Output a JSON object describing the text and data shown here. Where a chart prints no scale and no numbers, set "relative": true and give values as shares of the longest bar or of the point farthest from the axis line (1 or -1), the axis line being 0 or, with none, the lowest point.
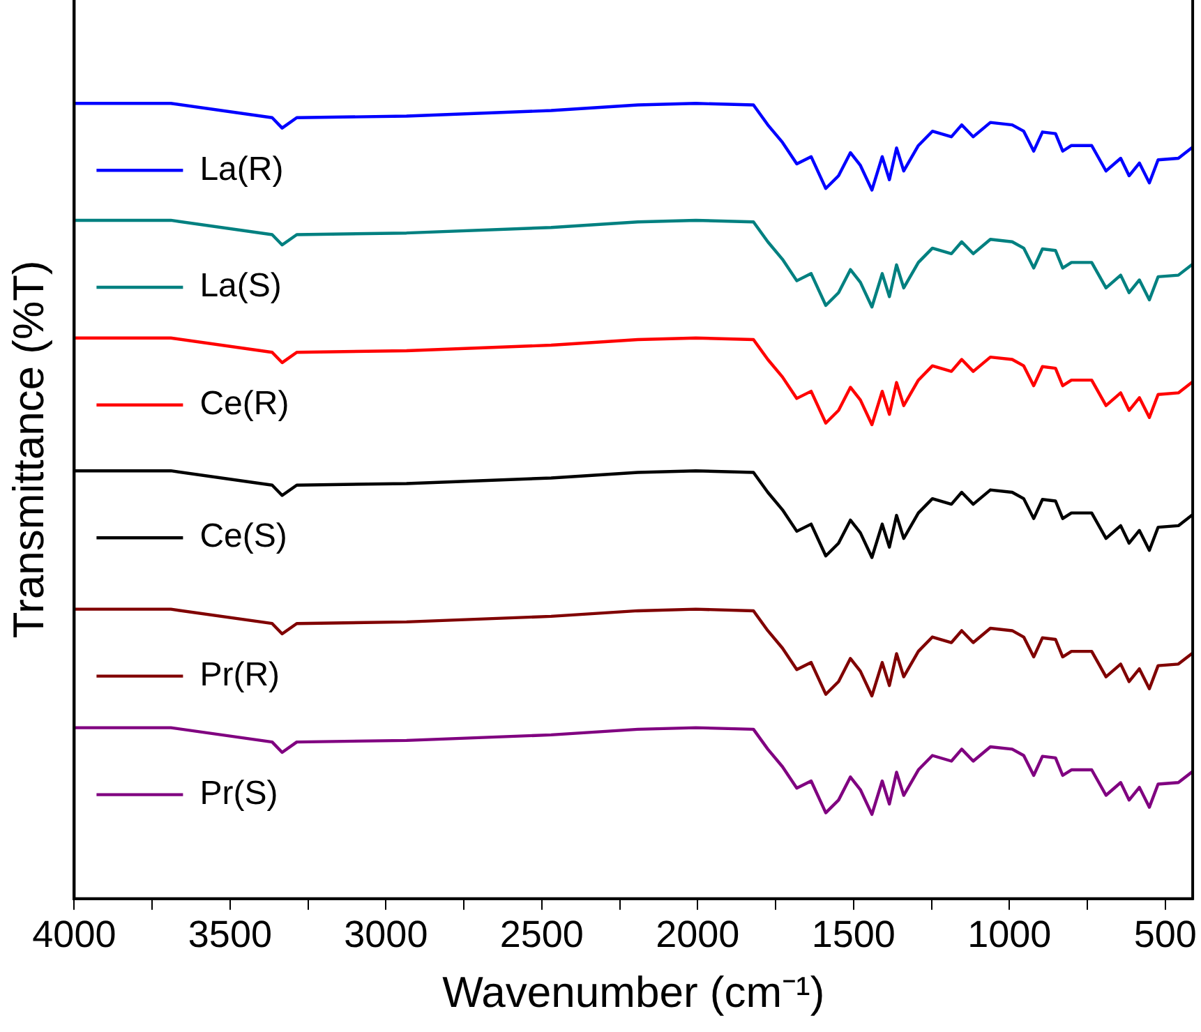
{
  "chart_data": {
    "type": "line",
    "xlabel": "Wavenumber (cm⁻¹)",
    "ylabel": "Transmittance (%T)",
    "relative": true,
    "legend": "left",
    "grid": false,
    "marker": "none",
    "line_style": "solid",
    "xlim": [
      4000,
      412
    ],
    "xticks": [
      4000,
      {
        "value": 3750,
        "label": null
      },
      3500,
      {
        "value": 3250,
        "label": null
      },
      3000,
      {
        "value": 2750,
        "label": null
      },
      2500,
      {
        "value": 2250,
        "label": null
      },
      2000,
      {
        "value": 1750,
        "label": null
      },
      1500,
      {
        "value": 1250,
        "label": null
      },
      1000,
      {
        "value": 750,
        "label": null
      },
      500
    ],
    "x": [
      4000,
      3690,
      3365,
      3333,
      3286,
      2934,
      2470,
      2192,
      2006,
      1821,
      1775,
      1728,
      1682,
      1636,
      1589,
      1548,
      1510,
      1478,
      1441,
      1408,
      1385,
      1362,
      1339,
      1292,
      1247,
      1186,
      1153,
      1116,
      1061,
      991,
      954,
      922,
      894,
      852,
      829,
      801,
      736,
      690,
      643,
      616,
      583,
      551,
      523,
      458,
      412
    ],
    "series": [
      {
        "name": "La(R)",
        "color": "#0000ff",
        "values": [
          1,
          1,
          0.982,
          0.969,
          0.982,
          0.984,
          0.991,
          0.998,
          1,
          0.998,
          0.973,
          0.951,
          0.924,
          0.933,
          0.893,
          0.909,
          0.938,
          0.922,
          0.891,
          0.933,
          0.904,
          0.944,
          0.915,
          0.947,
          0.965,
          0.958,
          0.973,
          0.958,
          0.976,
          0.973,
          0.965,
          0.94,
          0.964,
          0.962,
          0.94,
          0.947,
          0.947,
          0.915,
          0.931,
          0.909,
          0.925,
          0.9,
          0.929,
          0.931,
          0.945
        ]
      },
      {
        "name": "La(S)",
        "color": "#008080",
        "values": [
          0.853,
          0.853,
          0.835,
          0.822,
          0.835,
          0.837,
          0.844,
          0.851,
          0.853,
          0.851,
          0.826,
          0.804,
          0.777,
          0.786,
          0.746,
          0.762,
          0.791,
          0.775,
          0.744,
          0.786,
          0.757,
          0.797,
          0.768,
          0.8,
          0.818,
          0.811,
          0.826,
          0.811,
          0.829,
          0.826,
          0.818,
          0.793,
          0.817,
          0.815,
          0.793,
          0.8,
          0.8,
          0.768,
          0.784,
          0.762,
          0.778,
          0.753,
          0.782,
          0.784,
          0.798
        ]
      },
      {
        "name": "Ce(R)",
        "color": "#ff0000",
        "values": [
          0.705,
          0.705,
          0.687,
          0.674,
          0.687,
          0.689,
          0.696,
          0.703,
          0.705,
          0.703,
          0.678,
          0.656,
          0.629,
          0.638,
          0.598,
          0.614,
          0.643,
          0.627,
          0.596,
          0.638,
          0.609,
          0.649,
          0.62,
          0.652,
          0.67,
          0.663,
          0.678,
          0.663,
          0.681,
          0.678,
          0.67,
          0.645,
          0.669,
          0.667,
          0.645,
          0.652,
          0.652,
          0.62,
          0.636,
          0.614,
          0.63,
          0.605,
          0.634,
          0.636,
          0.65
        ]
      },
      {
        "name": "Ce(S)",
        "color": "#000000",
        "values": [
          0.538,
          0.538,
          0.52,
          0.507,
          0.52,
          0.522,
          0.529,
          0.536,
          0.538,
          0.536,
          0.511,
          0.489,
          0.462,
          0.471,
          0.431,
          0.447,
          0.476,
          0.46,
          0.429,
          0.471,
          0.442,
          0.482,
          0.453,
          0.485,
          0.503,
          0.496,
          0.511,
          0.496,
          0.514,
          0.511,
          0.503,
          0.478,
          0.502,
          0.5,
          0.478,
          0.485,
          0.485,
          0.453,
          0.469,
          0.447,
          0.463,
          0.438,
          0.467,
          0.469,
          0.483
        ]
      },
      {
        "name": "Pr(R)",
        "color": "#800000",
        "values": [
          0.364,
          0.364,
          0.346,
          0.333,
          0.346,
          0.348,
          0.355,
          0.362,
          0.364,
          0.362,
          0.337,
          0.315,
          0.288,
          0.297,
          0.257,
          0.273,
          0.302,
          0.286,
          0.255,
          0.297,
          0.268,
          0.308,
          0.279,
          0.311,
          0.329,
          0.322,
          0.337,
          0.322,
          0.34,
          0.337,
          0.329,
          0.304,
          0.328,
          0.326,
          0.304,
          0.311,
          0.311,
          0.279,
          0.295,
          0.273,
          0.289,
          0.264,
          0.293,
          0.295,
          0.309
        ]
      },
      {
        "name": "Pr(S)",
        "color": "#800080",
        "values": [
          0.215,
          0.215,
          0.197,
          0.184,
          0.197,
          0.199,
          0.206,
          0.213,
          0.215,
          0.213,
          0.188,
          0.166,
          0.139,
          0.148,
          0.108,
          0.124,
          0.153,
          0.137,
          0.106,
          0.148,
          0.119,
          0.159,
          0.13,
          0.162,
          0.18,
          0.173,
          0.188,
          0.173,
          0.191,
          0.188,
          0.18,
          0.155,
          0.179,
          0.177,
          0.155,
          0.162,
          0.162,
          0.13,
          0.146,
          0.124,
          0.14,
          0.115,
          0.144,
          0.146,
          0.16
        ]
      }
    ]
  }
}
